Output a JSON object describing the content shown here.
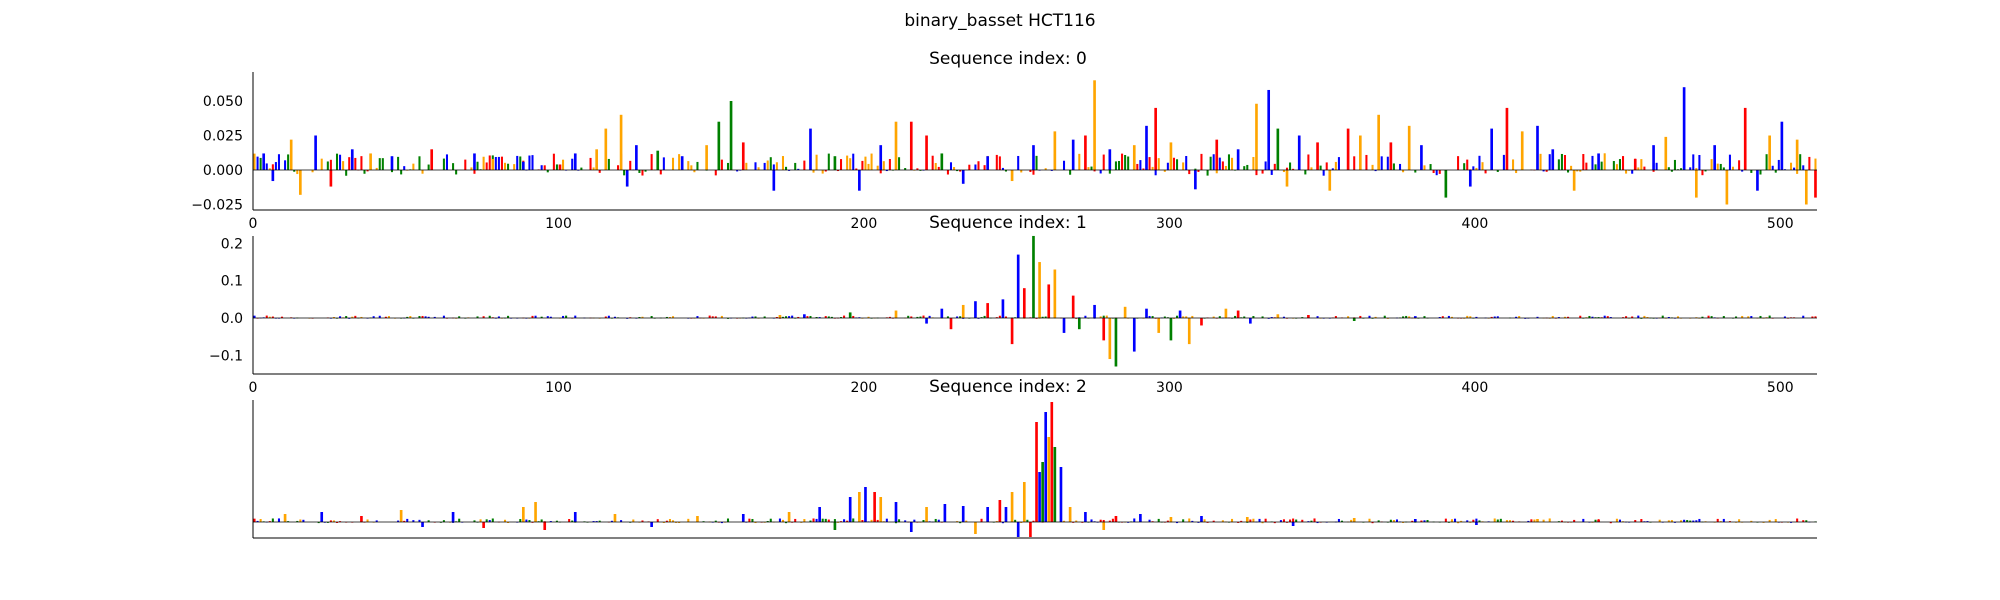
{
  "figure": {
    "suptitle": "binary_basset HCT116"
  },
  "colors": {
    "A": "#008000",
    "C": "#0000ff",
    "G": "#ffa500",
    "T": "#ff0000"
  },
  "chart_data": [
    {
      "type": "bar",
      "subtype": "sequence-logo attribution track",
      "title": "Sequence index: 0",
      "xlim": [
        0,
        512
      ],
      "ylim": [
        -0.03,
        0.07
      ],
      "xticks": [
        0,
        100,
        200,
        300,
        400,
        500
      ],
      "xticklabels": [
        "0",
        "100",
        "200",
        "300",
        "400",
        "500"
      ],
      "yticks": [
        -0.025,
        0.0,
        0.025,
        0.05
      ],
      "yticklabels": [
        "−0.025",
        "0.000",
        "0.025",
        "0.050"
      ],
      "peaks": [
        [
          3,
          0.012,
          "C"
        ],
        [
          6,
          -0.008,
          "C"
        ],
        [
          12,
          0.022,
          "G"
        ],
        [
          15,
          -0.018,
          "G"
        ],
        [
          20,
          0.025,
          "C"
        ],
        [
          25,
          -0.012,
          "T"
        ],
        [
          32,
          0.015,
          "C"
        ],
        [
          38,
          0.012,
          "G"
        ],
        [
          45,
          0.01,
          "C"
        ],
        [
          58,
          0.015,
          "T"
        ],
        [
          72,
          0.012,
          "C"
        ],
        [
          78,
          0.008,
          "G"
        ],
        [
          88,
          0.006,
          "C"
        ],
        [
          100,
          0.004,
          "T"
        ],
        [
          105,
          0.012,
          "C"
        ],
        [
          112,
          0.015,
          "G"
        ],
        [
          115,
          0.03,
          "G"
        ],
        [
          120,
          0.04,
          "G"
        ],
        [
          122,
          -0.012,
          "C"
        ],
        [
          125,
          0.018,
          "C"
        ],
        [
          132,
          0.014,
          "A"
        ],
        [
          140,
          0.01,
          "C"
        ],
        [
          148,
          0.018,
          "G"
        ],
        [
          152,
          0.035,
          "A"
        ],
        [
          156,
          0.05,
          "A"
        ],
        [
          160,
          0.02,
          "T"
        ],
        [
          170,
          -0.015,
          "C"
        ],
        [
          182,
          0.03,
          "C"
        ],
        [
          190,
          0.01,
          "A"
        ],
        [
          198,
          -0.015,
          "C"
        ],
        [
          205,
          0.018,
          "C"
        ],
        [
          210,
          0.035,
          "G"
        ],
        [
          215,
          0.035,
          "T"
        ],
        [
          220,
          0.025,
          "T"
        ],
        [
          225,
          0.012,
          "A"
        ],
        [
          232,
          -0.01,
          "C"
        ],
        [
          240,
          0.01,
          "C"
        ],
        [
          248,
          -0.008,
          "G"
        ],
        [
          255,
          0.018,
          "C"
        ],
        [
          262,
          0.028,
          "G"
        ],
        [
          268,
          0.022,
          "C"
        ],
        [
          272,
          0.025,
          "T"
        ],
        [
          275,
          0.065,
          "G"
        ],
        [
          280,
          0.015,
          "C"
        ],
        [
          288,
          0.018,
          "G"
        ],
        [
          292,
          0.032,
          "C"
        ],
        [
          295,
          0.045,
          "T"
        ],
        [
          300,
          0.02,
          "G"
        ],
        [
          308,
          -0.014,
          "C"
        ],
        [
          315,
          0.022,
          "T"
        ],
        [
          322,
          0.015,
          "C"
        ],
        [
          328,
          0.048,
          "G"
        ],
        [
          332,
          0.058,
          "C"
        ],
        [
          335,
          0.03,
          "A"
        ],
        [
          338,
          -0.012,
          "G"
        ],
        [
          342,
          0.025,
          "C"
        ],
        [
          348,
          0.02,
          "T"
        ],
        [
          352,
          -0.015,
          "G"
        ],
        [
          358,
          0.03,
          "T"
        ],
        [
          362,
          0.025,
          "G"
        ],
        [
          368,
          0.04,
          "G"
        ],
        [
          372,
          0.02,
          "T"
        ],
        [
          378,
          0.032,
          "G"
        ],
        [
          382,
          0.018,
          "C"
        ],
        [
          390,
          -0.02,
          "A"
        ],
        [
          398,
          -0.012,
          "C"
        ],
        [
          405,
          0.03,
          "C"
        ],
        [
          410,
          0.045,
          "T"
        ],
        [
          415,
          0.028,
          "G"
        ],
        [
          420,
          0.032,
          "C"
        ],
        [
          425,
          0.015,
          "C"
        ],
        [
          432,
          -0.015,
          "G"
        ],
        [
          440,
          0.012,
          "C"
        ],
        [
          452,
          0.008,
          "T"
        ],
        [
          458,
          0.018,
          "C"
        ],
        [
          462,
          0.024,
          "G"
        ],
        [
          468,
          0.06,
          "C"
        ],
        [
          472,
          -0.02,
          "G"
        ],
        [
          478,
          0.018,
          "C"
        ],
        [
          482,
          -0.025,
          "G"
        ],
        [
          488,
          0.045,
          "T"
        ],
        [
          492,
          -0.015,
          "C"
        ],
        [
          496,
          0.025,
          "G"
        ],
        [
          500,
          0.035,
          "C"
        ],
        [
          505,
          0.022,
          "G"
        ],
        [
          508,
          -0.025,
          "G"
        ],
        [
          511,
          -0.02,
          "T"
        ]
      ],
      "peak_fields": [
        "position",
        "attribution",
        "base"
      ]
    },
    {
      "type": "bar",
      "subtype": "sequence-logo attribution track",
      "title": "Sequence index: 1",
      "xlim": [
        0,
        512
      ],
      "ylim": [
        -0.15,
        0.22
      ],
      "xticks": [
        0,
        100,
        200,
        300,
        400,
        500
      ],
      "xticklabels": [
        "0",
        "100",
        "200",
        "300",
        "400",
        "500"
      ],
      "yticks": [
        -0.1,
        0.0,
        0.1,
        0.2
      ],
      "yticklabels": [
        "−0.1",
        "0.0",
        "0.1",
        "0.2"
      ],
      "peaks": [
        [
          172,
          0.008,
          "G"
        ],
        [
          180,
          0.01,
          "C"
        ],
        [
          195,
          0.015,
          "A"
        ],
        [
          210,
          0.02,
          "G"
        ],
        [
          220,
          -0.015,
          "C"
        ],
        [
          225,
          0.025,
          "C"
        ],
        [
          228,
          -0.03,
          "T"
        ],
        [
          232,
          0.035,
          "G"
        ],
        [
          236,
          0.045,
          "C"
        ],
        [
          240,
          0.04,
          "T"
        ],
        [
          245,
          0.05,
          "C"
        ],
        [
          248,
          -0.07,
          "T"
        ],
        [
          250,
          0.17,
          "C"
        ],
        [
          252,
          0.08,
          "T"
        ],
        [
          255,
          0.22,
          "A"
        ],
        [
          257,
          0.15,
          "G"
        ],
        [
          260,
          0.09,
          "T"
        ],
        [
          262,
          0.13,
          "G"
        ],
        [
          265,
          -0.04,
          "C"
        ],
        [
          268,
          0.06,
          "T"
        ],
        [
          270,
          -0.03,
          "A"
        ],
        [
          275,
          0.035,
          "C"
        ],
        [
          278,
          -0.06,
          "T"
        ],
        [
          280,
          -0.11,
          "G"
        ],
        [
          282,
          -0.13,
          "A"
        ],
        [
          285,
          0.03,
          "G"
        ],
        [
          288,
          -0.09,
          "C"
        ],
        [
          292,
          0.025,
          "C"
        ],
        [
          296,
          -0.04,
          "G"
        ],
        [
          300,
          -0.06,
          "A"
        ],
        [
          303,
          0.02,
          "C"
        ],
        [
          306,
          -0.07,
          "G"
        ],
        [
          310,
          -0.02,
          "T"
        ],
        [
          318,
          0.025,
          "G"
        ],
        [
          322,
          0.02,
          "T"
        ],
        [
          326,
          -0.015,
          "C"
        ],
        [
          335,
          0.01,
          "G"
        ],
        [
          345,
          0.008,
          "T"
        ],
        [
          360,
          -0.008,
          "A"
        ],
        [
          380,
          0.005,
          "C"
        ]
      ],
      "peak_fields": [
        "position",
        "attribution",
        "base"
      ]
    },
    {
      "type": "bar",
      "subtype": "sequence-logo attribution track",
      "title": "Sequence index: 2",
      "xlim": [
        0,
        512
      ],
      "xticks": [],
      "yticks": [],
      "peaks": [
        [
          10,
          0.008,
          "G"
        ],
        [
          22,
          0.01,
          "C"
        ],
        [
          35,
          0.006,
          "T"
        ],
        [
          48,
          0.012,
          "G"
        ],
        [
          55,
          -0.005,
          "C"
        ],
        [
          65,
          0.01,
          "C"
        ],
        [
          75,
          -0.006,
          "T"
        ],
        [
          88,
          0.015,
          "G"
        ],
        [
          92,
          0.02,
          "G"
        ],
        [
          95,
          -0.008,
          "T"
        ],
        [
          105,
          0.01,
          "C"
        ],
        [
          118,
          0.008,
          "G"
        ],
        [
          130,
          -0.005,
          "C"
        ],
        [
          145,
          0.006,
          "G"
        ],
        [
          160,
          0.008,
          "C"
        ],
        [
          175,
          0.01,
          "G"
        ],
        [
          185,
          0.015,
          "C"
        ],
        [
          190,
          -0.008,
          "A"
        ],
        [
          195,
          0.025,
          "C"
        ],
        [
          198,
          0.03,
          "G"
        ],
        [
          200,
          0.035,
          "C"
        ],
        [
          203,
          0.03,
          "T"
        ],
        [
          205,
          0.025,
          "G"
        ],
        [
          210,
          0.02,
          "C"
        ],
        [
          215,
          -0.01,
          "C"
        ],
        [
          220,
          0.015,
          "G"
        ],
        [
          226,
          0.018,
          "C"
        ],
        [
          232,
          0.016,
          "C"
        ],
        [
          236,
          -0.012,
          "G"
        ],
        [
          240,
          0.015,
          "C"
        ],
        [
          244,
          0.022,
          "T"
        ],
        [
          246,
          0.015,
          "C"
        ],
        [
          248,
          0.03,
          "G"
        ],
        [
          250,
          -0.015,
          "C"
        ],
        [
          252,
          0.04,
          "G"
        ],
        [
          254,
          -0.015,
          "T"
        ],
        [
          256,
          0.1,
          "T"
        ],
        [
          257,
          0.05,
          "C"
        ],
        [
          258,
          0.06,
          "A"
        ],
        [
          259,
          0.11,
          "C"
        ],
        [
          260,
          0.085,
          "G"
        ],
        [
          261,
          0.12,
          "T"
        ],
        [
          262,
          0.075,
          "A"
        ],
        [
          264,
          0.055,
          "C"
        ],
        [
          267,
          0.015,
          "G"
        ],
        [
          272,
          0.01,
          "C"
        ],
        [
          278,
          -0.008,
          "G"
        ],
        [
          282,
          0.006,
          "T"
        ],
        [
          290,
          0.008,
          "C"
        ],
        [
          300,
          0.005,
          "G"
        ],
        [
          310,
          0.006,
          "C"
        ],
        [
          325,
          0.005,
          "G"
        ],
        [
          340,
          -0.004,
          "C"
        ],
        [
          360,
          0.004,
          "G"
        ],
        [
          380,
          0.003,
          "C"
        ],
        [
          400,
          -0.003,
          "C"
        ],
        [
          420,
          0.003,
          "G"
        ],
        [
          440,
          0.002,
          "T"
        ]
      ],
      "peak_fields": [
        "position",
        "attribution",
        "base"
      ]
    }
  ]
}
